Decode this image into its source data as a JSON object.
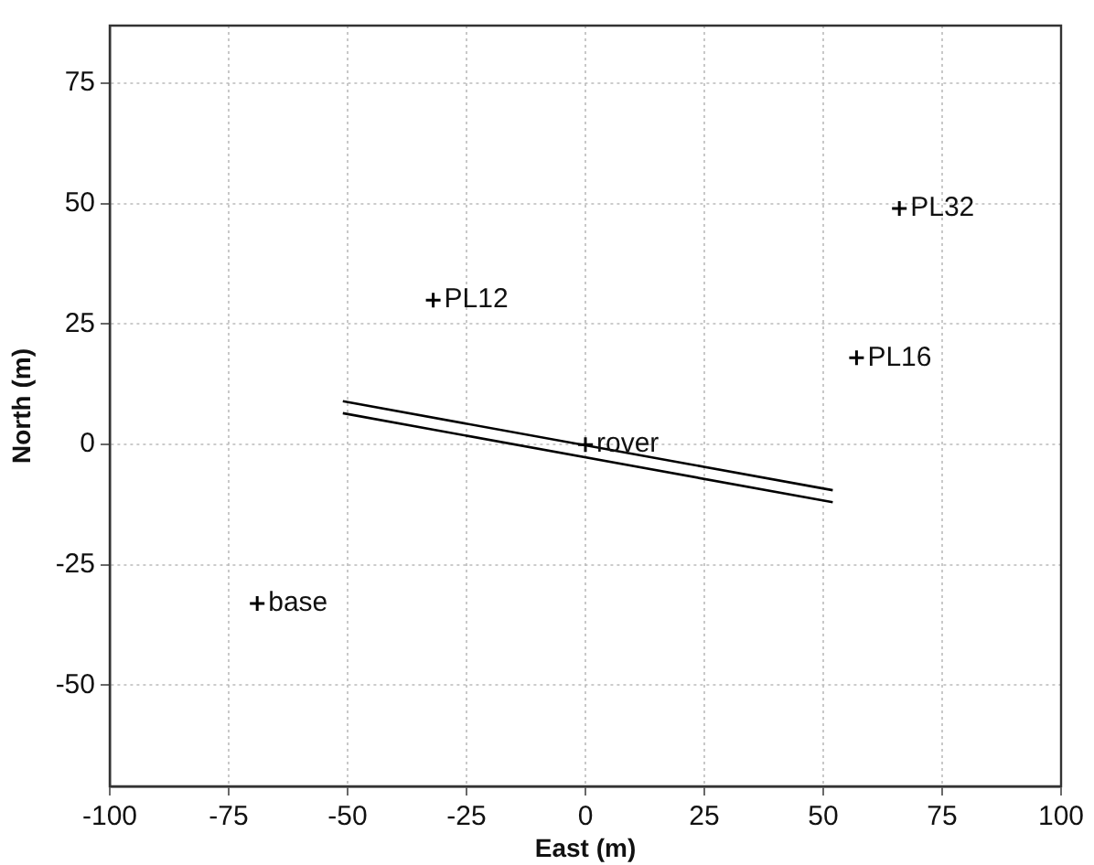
{
  "chart_data": {
    "type": "scatter",
    "xlabel": "East (m)",
    "ylabel": "North (m)",
    "xlim": [
      -100,
      100
    ],
    "ylim": [
      -71,
      87
    ],
    "xticks": [
      -100,
      -75,
      -50,
      -25,
      0,
      25,
      50,
      75,
      100
    ],
    "yticks": [
      -50,
      -25,
      0,
      25,
      50,
      75
    ],
    "grid": true,
    "marker": "cross",
    "series": [
      {
        "type": "scatter",
        "color": "#000000",
        "x": [
          -69,
          -32,
          0,
          57,
          66
        ],
        "values": [
          -33,
          30,
          0,
          18,
          49
        ]
      },
      {
        "type": "line",
        "color": "#000000",
        "line_style": "solid",
        "marker": "none",
        "x": [
          -51,
          52
        ],
        "values": [
          9,
          -9.5
        ]
      },
      {
        "type": "line",
        "color": "#000000",
        "line_style": "solid",
        "marker": "none",
        "x": [
          -51,
          52
        ],
        "values": [
          6.5,
          -12
        ]
      }
    ],
    "annotations": [
      {
        "text": "base",
        "x": -69,
        "y": -33
      },
      {
        "text": "PL12",
        "x": -32,
        "y": 30
      },
      {
        "text": "rover",
        "x": 0,
        "y": 0
      },
      {
        "text": "PL16",
        "x": 57,
        "y": 18
      },
      {
        "text": "PL32",
        "x": 66,
        "y": 49
      }
    ]
  }
}
